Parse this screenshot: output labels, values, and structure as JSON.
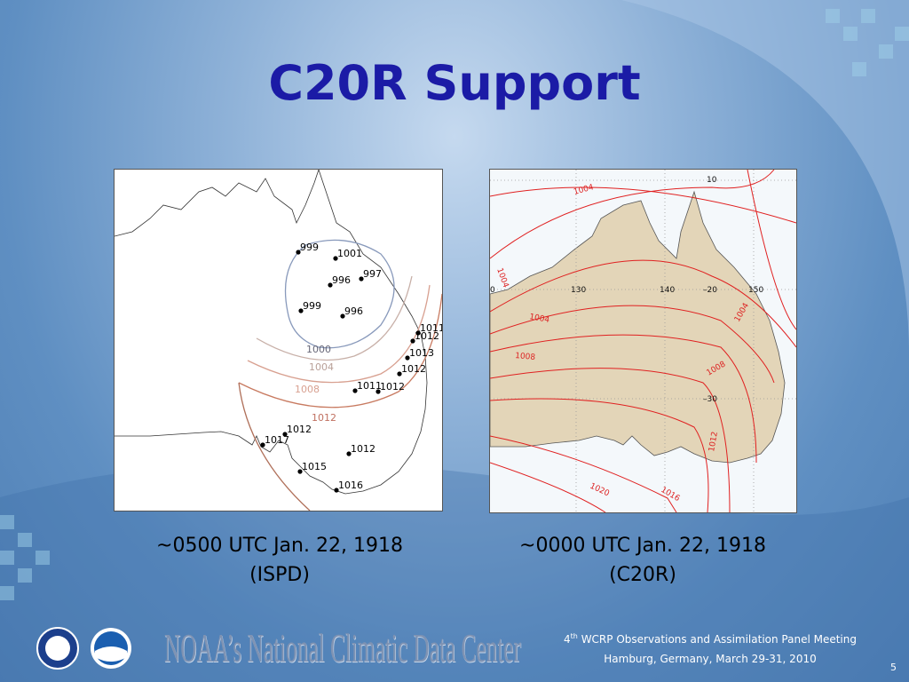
{
  "header": {
    "title": "C20R Support"
  },
  "panels": [
    {
      "caption": [
        "~0500 UTC  Jan. 22, 1918",
        "(ISPD)"
      ],
      "stations": [
        "999",
        "1001",
        "996",
        "997",
        "999",
        "996",
        "1011",
        "1012",
        "1013",
        "1012",
        "1011",
        "1012",
        "1012",
        "1017",
        "1015",
        "1012",
        "1016"
      ],
      "contours": [
        "1000",
        "1004",
        "1008",
        "1012"
      ]
    },
    {
      "caption": [
        "~0000 UTC  Jan. 22, 1918",
        "(C20R)"
      ],
      "labels": [
        "10",
        "1004",
        "1004",
        "0",
        "130",
        "140",
        "–20",
        "150",
        "1004",
        "1004",
        "1008",
        "1008",
        "–30",
        "1012",
        "1020",
        "1016"
      ]
    }
  ],
  "footer": {
    "logo_text": "NOAA’s National Climatic Data Center",
    "meeting_number": "4",
    "meeting_suffix": "th",
    "meeting": "WCRP Observations and Assimilation Panel Meeting",
    "location": "Hamburg, Germany, March 29-31, 2010",
    "page": "5"
  }
}
